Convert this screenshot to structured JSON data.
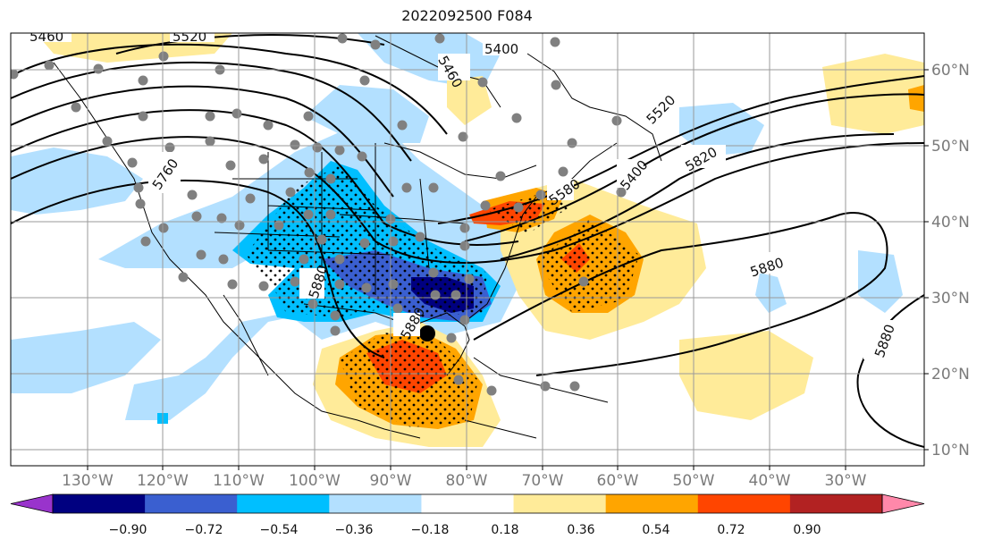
{
  "title": "2022092500 F084",
  "lon_labels": [
    "130°W",
    "120°W",
    "110°W",
    "100°W",
    "90°W",
    "80°W",
    "70°W",
    "60°W",
    "50°W",
    "40°W",
    "30°W"
  ],
  "lat_labels": [
    "60°N",
    "50°N",
    "40°N",
    "30°N",
    "20°N",
    "10°N"
  ],
  "colorbar": {
    "tick_labels": [
      "−0.90",
      "−0.72",
      "−0.54",
      "−0.36",
      "−0.18",
      "0.18",
      "0.36",
      "0.54",
      "0.72",
      "0.90"
    ],
    "colors": [
      "#9933cc",
      "#000080",
      "#3a5fd0",
      "#00bfff",
      "#b3e0ff",
      "#ffffff",
      "#ffeb99",
      "#ffa500",
      "#ff4500",
      "#b22222",
      "#ff88aa"
    ]
  },
  "contour_labels": [
    "5460",
    "5520",
    "5400",
    "5460",
    "5520",
    "5760",
    "5820",
    "5400",
    "5580",
    "5880",
    "5880",
    "5880",
    "5880"
  ],
  "colors": {
    "land_outline": "#000000",
    "grid": "#9a9a9a",
    "station_dot": "#808080",
    "center_dot": "#000000"
  }
}
